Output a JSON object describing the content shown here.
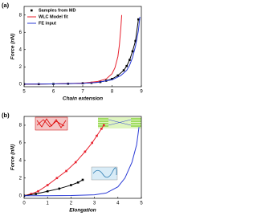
{
  "chart_data": [
    {
      "type": "line",
      "label": "(a)",
      "xlabel": "Chain extension",
      "ylabel": "Force (nN)",
      "xlim": [
        5,
        9
      ],
      "ylim": [
        -0.3,
        9
      ],
      "xticks": [
        5,
        6,
        7,
        8,
        9
      ],
      "yticks": [
        0,
        2,
        4,
        6,
        8
      ],
      "legend": "upper left",
      "series": [
        {
          "name": "Samples from MD",
          "color": "#000000",
          "marker": "square",
          "x": [
            5,
            5.5,
            6,
            6.5,
            7,
            7.3,
            7.6,
            7.8,
            8,
            8.2,
            8.4,
            8.5,
            8.6,
            8.7,
            8.8,
            8.9
          ],
          "values": [
            0,
            0,
            0.02,
            0.05,
            0.1,
            0.15,
            0.25,
            0.4,
            0.6,
            1.0,
            1.6,
            2.1,
            2.8,
            3.8,
            5.0,
            7.5
          ]
        },
        {
          "name": "WLC Model fit",
          "color": "#e8212e",
          "x": [
            5,
            6,
            7,
            7.5,
            7.8,
            8.0,
            8.1,
            8.2,
            8.25,
            8.3,
            8.33
          ],
          "values": [
            0,
            0.03,
            0.12,
            0.3,
            0.6,
            1.2,
            1.9,
            3.2,
            4.5,
            6.5,
            8
          ]
        },
        {
          "name": "FE input",
          "color": "#2b3bd6",
          "x": [
            5,
            6,
            7,
            7.5,
            8,
            8.3,
            8.5,
            8.6,
            8.7,
            8.8,
            8.9,
            8.95
          ],
          "values": [
            0,
            0.02,
            0.1,
            0.2,
            0.5,
            1.0,
            1.6,
            2.2,
            3.1,
            4.4,
            6.2,
            7.8
          ]
        }
      ]
    },
    {
      "type": "line",
      "label": "(b)",
      "xlabel": "Elongation",
      "ylabel": "Force (nN)",
      "xlim": [
        0,
        5
      ],
      "ylim": [
        -0.3,
        9
      ],
      "xticks": [
        0,
        1,
        2,
        3,
        4,
        5
      ],
      "yticks": [
        0,
        2,
        4,
        6,
        8
      ],
      "series": [
        {
          "color": "#e8212e",
          "marker": "square",
          "x": [
            0,
            0.3,
            0.6,
            1.0,
            1.4,
            1.8,
            2.2,
            2.6,
            2.9,
            3.1,
            3.3,
            3.4
          ],
          "values": [
            0,
            0.2,
            0.5,
            1.2,
            2.0,
            2.8,
            3.8,
            5.0,
            6.0,
            6.8,
            7.6,
            8
          ]
        },
        {
          "color": "#000000",
          "marker": "square",
          "x": [
            0,
            0.5,
            1.0,
            1.5,
            2.0,
            2.3,
            2.5
          ],
          "values": [
            0,
            0.2,
            0.5,
            0.8,
            1.2,
            1.5,
            1.8
          ]
        },
        {
          "color": "#2b3bd6",
          "x": [
            0,
            1,
            2,
            3,
            3.5,
            4,
            4.3,
            4.6,
            4.8,
            4.9
          ],
          "values": [
            0,
            0,
            0.02,
            0.1,
            0.3,
            1.0,
            2.0,
            3.8,
            5.8,
            7.8
          ]
        }
      ]
    }
  ]
}
